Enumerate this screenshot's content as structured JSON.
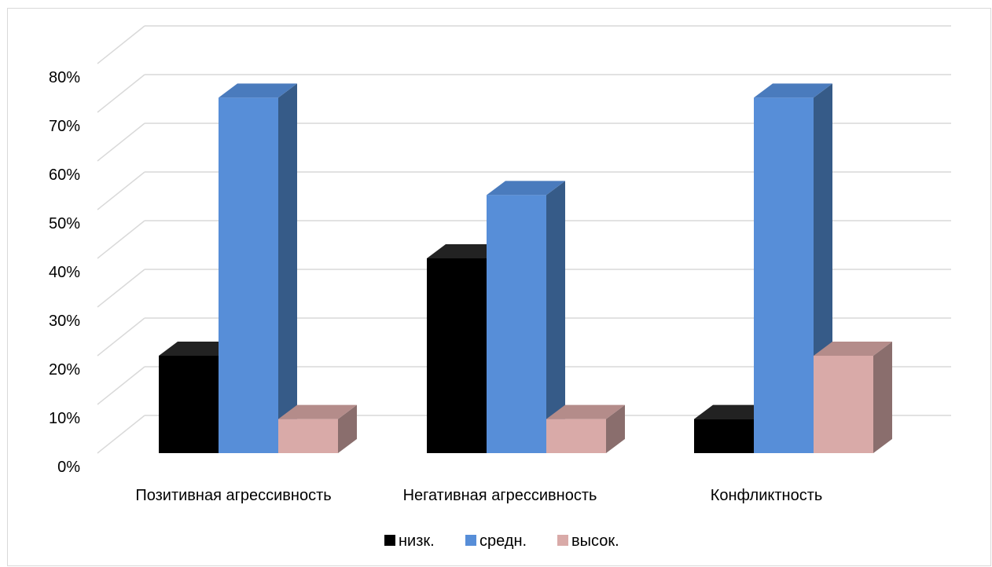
{
  "chart_data": {
    "type": "bar",
    "categories": [
      "Позитивная агрессивность",
      "Негативная агрессивность",
      "Конфликтность"
    ],
    "series": [
      {
        "name": "низк.",
        "values": [
          20,
          40,
          7
        ],
        "color": "#000000",
        "side": "#1a1a1a",
        "top": "#222222"
      },
      {
        "name": "средн.",
        "values": [
          73,
          53,
          73
        ],
        "color": "#578ed8",
        "side": "#365b88",
        "top": "#4a7bbd"
      },
      {
        "name": "высок.",
        "values": [
          7,
          7,
          20
        ],
        "color": "#d9aaa8",
        "side": "#8a6e6d",
        "top": "#b48c8a"
      }
    ],
    "y_ticks": [
      "0%",
      "10%",
      "20%",
      "30%",
      "40%",
      "50%",
      "60%",
      "70%",
      "80%"
    ],
    "ylim": [
      0,
      80
    ],
    "grid": true,
    "legend": "bottom",
    "projection": "3d-column"
  }
}
